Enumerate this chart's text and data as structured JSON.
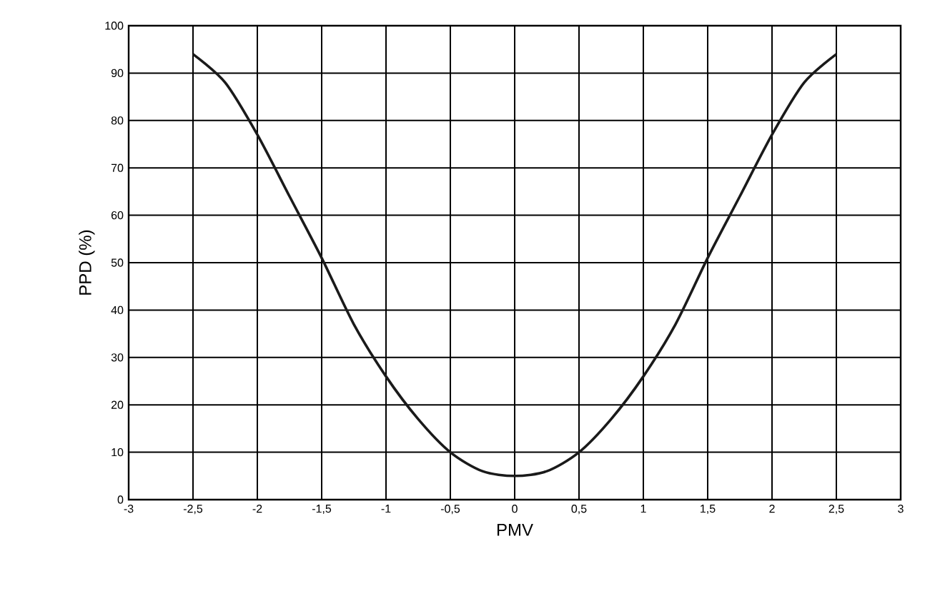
{
  "chart_data": {
    "type": "line",
    "xlabel": "PMV",
    "ylabel": "PPD (%)",
    "x": [
      -2.5,
      -2.25,
      -2,
      -1.75,
      -1.5,
      -1.25,
      -1,
      -0.75,
      -0.5,
      -0.25,
      0,
      0.25,
      0.5,
      0.75,
      1,
      1.25,
      1.5,
      1.75,
      2,
      2.25,
      2.5
    ],
    "series": [
      {
        "color": "#1a1a1a",
        "values": [
          94,
          88,
          77,
          64,
          51,
          37,
          26,
          17,
          10,
          6,
          5,
          6,
          10,
          17,
          26,
          37,
          51,
          64,
          77,
          88,
          94
        ]
      }
    ],
    "xlim": [
      -3,
      3
    ],
    "xticks": [
      -3,
      {
        "value": -2.5,
        "label": "-2,5"
      },
      -2,
      {
        "value": -1.5,
        "label": "-1,5"
      },
      -1,
      {
        "value": -0.5,
        "label": "-0,5"
      },
      0,
      {
        "value": 0.5,
        "label": "0,5"
      },
      1,
      {
        "value": 1.5,
        "label": "1,5"
      },
      2,
      {
        "value": 2.5,
        "label": "2,5"
      },
      3
    ],
    "ylim": [
      0,
      100
    ],
    "yticks": [
      0,
      10,
      20,
      30,
      40,
      50,
      60,
      70,
      80,
      90,
      100
    ],
    "grid": true,
    "marker": "none",
    "line_style": "solid"
  }
}
